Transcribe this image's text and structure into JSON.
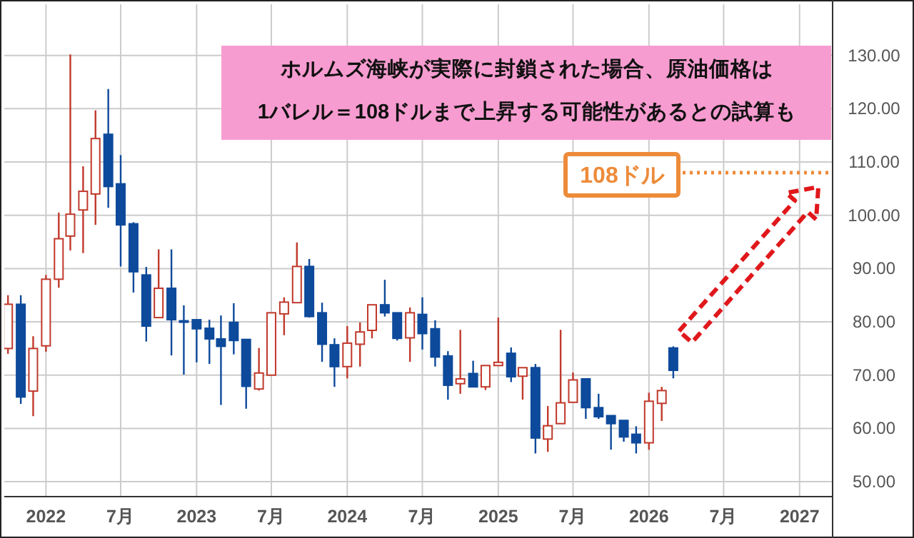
{
  "chart_data": {
    "type": "candlestick",
    "x": [
      "2021-10",
      "2021-11",
      "2021-12",
      "2022-01",
      "2022-02",
      "2022-03",
      "2022-04",
      "2022-05",
      "2022-06",
      "2022-07",
      "2022-08",
      "2022-09",
      "2022-10",
      "2022-11",
      "2022-12",
      "2023-01",
      "2023-02",
      "2023-03",
      "2023-04",
      "2023-05",
      "2023-06",
      "2023-07",
      "2023-08",
      "2023-09",
      "2023-10",
      "2023-11",
      "2023-12",
      "2024-01",
      "2024-02",
      "2024-03",
      "2024-04",
      "2024-05",
      "2024-06",
      "2024-07",
      "2024-08",
      "2024-09",
      "2024-10",
      "2024-11",
      "2024-12",
      "2025-01",
      "2025-02",
      "2025-03",
      "2025-04",
      "2025-05",
      "2025-06",
      "2025-07",
      "2025-08",
      "2025-09",
      "2025-10",
      "2025-11",
      "2025-12",
      "2026-01",
      "2026-02",
      "2026-03"
    ],
    "ohlc": [
      [
        75,
        85,
        74,
        83.3
      ],
      [
        83.3,
        85,
        64.6,
        65.9
      ],
      [
        67,
        77.3,
        62.3,
        75
      ],
      [
        75.5,
        88.8,
        74.4,
        88
      ],
      [
        88,
        100.5,
        86.4,
        95.6
      ],
      [
        96.1,
        130.2,
        93.4,
        100.2
      ],
      [
        101,
        109.2,
        92.9,
        104.5
      ],
      [
        104,
        119.7,
        98.2,
        114.4
      ],
      [
        115.2,
        123.7,
        101.4,
        105.4
      ],
      [
        105.9,
        111.3,
        90.4,
        98.2
      ],
      [
        98.4,
        98.7,
        85.5,
        89.4
      ],
      [
        88.8,
        90.3,
        76.3,
        79.2
      ],
      [
        80.8,
        93.6,
        80.8,
        86.3
      ],
      [
        86.3,
        93.6,
        73.7,
        80.4
      ],
      [
        80.2,
        83.1,
        70.1,
        80
      ],
      [
        80.4,
        80.4,
        72.4,
        78.7
      ],
      [
        78.8,
        80.4,
        72.1,
        76.8
      ],
      [
        76.8,
        81.2,
        64.4,
        75.4
      ],
      [
        79.9,
        83.5,
        73.9,
        76.5
      ],
      [
        76.7,
        76.7,
        63.7,
        67.9
      ],
      [
        67.4,
        75.1,
        67.1,
        70.4
      ],
      [
        70,
        81.7,
        70,
        81.7
      ],
      [
        81.5,
        84.6,
        77.5,
        83.7
      ],
      [
        83.6,
        94.9,
        83.6,
        90.4
      ],
      [
        90.4,
        91.8,
        80.8,
        81
      ],
      [
        81.7,
        83.6,
        72.5,
        75.8
      ],
      [
        75.7,
        76.9,
        67.8,
        71.6
      ],
      [
        71.6,
        79.2,
        69.4,
        76
      ],
      [
        75.8,
        79.9,
        71.6,
        78.1
      ],
      [
        78.4,
        83.2,
        76.9,
        83.2
      ],
      [
        83.2,
        87.9,
        81,
        81.7
      ],
      [
        81.7,
        81.7,
        76.5,
        76.9
      ],
      [
        77,
        82.7,
        72.5,
        81.7
      ],
      [
        81.4,
        84.6,
        74.8,
        77.8
      ],
      [
        78.7,
        80.3,
        71.6,
        73.4
      ],
      [
        73.6,
        74.5,
        65.4,
        68.1
      ],
      [
        68.4,
        78.5,
        66.5,
        69.3
      ],
      [
        70.3,
        72.7,
        67.8,
        67.8
      ],
      [
        67.8,
        71.8,
        67.2,
        71.8
      ],
      [
        71.8,
        80.8,
        71.8,
        72.4
      ],
      [
        74.1,
        75.2,
        68.7,
        69.7
      ],
      [
        69.8,
        71.4,
        65.4,
        71.4
      ],
      [
        71.4,
        72.1,
        55.3,
        58.2
      ],
      [
        58,
        64.2,
        55.6,
        60.5
      ],
      [
        60.9,
        78.5,
        60.9,
        64.8
      ],
      [
        64.9,
        70.5,
        64.9,
        69.1
      ],
      [
        69.3,
        69.3,
        61.8,
        63.9
      ],
      [
        63.9,
        66.5,
        61.8,
        62.2
      ],
      [
        62.4,
        62.4,
        56,
        60.9
      ],
      [
        61.5,
        61.5,
        57.5,
        58.4
      ],
      [
        58.9,
        60.4,
        55.3,
        57.3
      ],
      [
        57.3,
        66.7,
        56,
        65.1
      ],
      [
        64.7,
        67.8,
        61.4,
        67.1
      ],
      [
        75.1,
        75.4,
        69.4,
        70.9
      ]
    ],
    "colors": [
      "#c0392b",
      "#0d4a9b",
      "#c0392b",
      "#c0392b",
      "#c0392b",
      "#c0392b",
      "#c0392b",
      "#c0392b",
      "#0d4a9b",
      "#0d4a9b",
      "#0d4a9b",
      "#0d4a9b",
      "#c0392b",
      "#0d4a9b",
      "#0d4a9b",
      "#0d4a9b",
      "#0d4a9b",
      "#0d4a9b",
      "#0d4a9b",
      "#0d4a9b",
      "#c0392b",
      "#c0392b",
      "#c0392b",
      "#c0392b",
      "#0d4a9b",
      "#0d4a9b",
      "#0d4a9b",
      "#c0392b",
      "#c0392b",
      "#c0392b",
      "#0d4a9b",
      "#0d4a9b",
      "#c0392b",
      "#0d4a9b",
      "#0d4a9b",
      "#0d4a9b",
      "#c0392b",
      "#0d4a9b",
      "#c0392b",
      "#c0392b",
      "#0d4a9b",
      "#c0392b",
      "#0d4a9b",
      "#c0392b",
      "#c0392b",
      "#c0392b",
      "#0d4a9b",
      "#0d4a9b",
      "#0d4a9b",
      "#0d4a9b",
      "#0d4a9b",
      "#c0392b",
      "#c0392b",
      "#0d4a9b"
    ],
    "xlim": [
      "2021-09-22",
      "2027-03-22"
    ],
    "xticks": [
      {
        "value": "2022-01",
        "label": "2022"
      },
      {
        "value": "2022-07",
        "label": "7月"
      },
      {
        "value": "2023-01",
        "label": "2023"
      },
      {
        "value": "2023-07",
        "label": "7月"
      },
      {
        "value": "2024-01",
        "label": "2024"
      },
      {
        "value": "2024-07",
        "label": "7月"
      },
      {
        "value": "2025-01",
        "label": "2025"
      },
      {
        "value": "2025-07",
        "label": "7月"
      },
      {
        "value": "2026-01",
        "label": "2026"
      },
      {
        "value": "2026-07",
        "label": "7月"
      },
      {
        "value": "2027-01",
        "label": "2027"
      }
    ],
    "ylim": [
      47.2,
      139.6
    ],
    "yticks": [
      {
        "value": 50,
        "label": "50.00"
      },
      {
        "value": 60,
        "label": "60.00"
      },
      {
        "value": 70,
        "label": "70.00"
      },
      {
        "value": 80,
        "label": "80.00"
      },
      {
        "value": 90,
        "label": "90.00"
      },
      {
        "value": 100,
        "label": "100.00"
      },
      {
        "value": 110,
        "label": "110.00"
      },
      {
        "value": 120,
        "label": "120.00"
      },
      {
        "value": 130,
        "label": "130.00"
      }
    ],
    "grid": true,
    "ref_lines": [
      {
        "axis": "y",
        "value": 108,
        "label": "108ドル",
        "color": "#ed8b3a",
        "line_style": "dotted"
      }
    ],
    "annotations": [
      "ホルムズ海峡が実際に封鎖された場合、原油価格は",
      "1バレル＝108ドルまで上昇する可能性があるとの試算も"
    ]
  }
}
